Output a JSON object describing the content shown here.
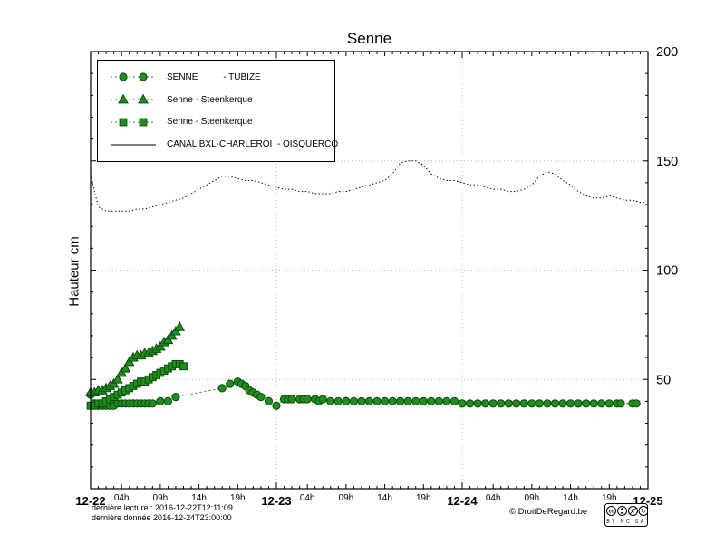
{
  "title": "Senne",
  "ylabel": "Hauteur cm",
  "footer": {
    "derniere_lecture": "dernière lecture : 2016-12-22T12:11:09",
    "derniere_donnee": "dernière donnée  2016-12-24T23:00:00",
    "copyright": "© DroitDeRegard.be",
    "license_cc": "cc",
    "license_labels": "BY NC SA"
  },
  "legend": [
    {
      "label": "SENNE          - TUBIZE",
      "marker": "circle",
      "line": "dotted",
      "color": "#1e8e1e",
      "edge": "#0a4a0a"
    },
    {
      "label": "Senne - Steenkerque",
      "marker": "triangle",
      "line": "dotted",
      "color": "#1e8e1e",
      "edge": "#0a4a0a"
    },
    {
      "label": "Senne - Steenkerque",
      "marker": "square",
      "line": "dotted",
      "color": "#1e8e1e",
      "edge": "#0a4a0a"
    },
    {
      "label": "CANAL BXL-CHARLEROI  - OISQUERCQ",
      "marker": "none",
      "line": "solid",
      "color": "#000000",
      "edge": "#000000"
    }
  ],
  "chart_data": {
    "type": "line",
    "title": "Senne",
    "xlabel": "",
    "ylabel": "Hauteur cm",
    "x_unit": "hours since 2016-12-22 00:00",
    "x_total_hours": 72,
    "x_ticks_days": [
      "12-22",
      "12-23",
      "12-24",
      "12-25"
    ],
    "x_ticks_hours": [
      "04h",
      "09h",
      "14h",
      "19h"
    ],
    "x_hour_offsets": [
      4,
      9,
      14,
      19
    ],
    "ylim": [
      0,
      200
    ],
    "y_ticks": [
      50,
      100,
      150,
      200
    ],
    "grid": true,
    "legend_position": "top-left",
    "series": [
      {
        "name": "CANAL BXL-CHARLEROI - OISQUERCQ",
        "marker": "none",
        "line": "fine-dotted",
        "color": "#000000",
        "edge": "#000000",
        "points": [
          [
            0,
            144
          ],
          [
            0.5,
            136
          ],
          [
            1,
            129
          ],
          [
            2,
            127
          ],
          [
            3,
            127
          ],
          [
            4,
            127
          ],
          [
            5,
            127
          ],
          [
            6,
            128
          ],
          [
            7,
            128
          ],
          [
            8,
            129
          ],
          [
            9,
            130
          ],
          [
            10,
            131
          ],
          [
            11,
            132
          ],
          [
            12,
            133
          ],
          [
            13,
            135
          ],
          [
            14,
            137
          ],
          [
            15,
            139
          ],
          [
            16,
            141
          ],
          [
            17,
            143
          ],
          [
            18,
            143
          ],
          [
            19,
            142
          ],
          [
            20,
            141
          ],
          [
            21,
            141
          ],
          [
            22,
            140
          ],
          [
            23,
            139
          ],
          [
            24,
            138
          ],
          [
            25,
            137
          ],
          [
            26,
            137
          ],
          [
            27,
            136
          ],
          [
            28,
            136
          ],
          [
            29,
            135
          ],
          [
            30,
            135
          ],
          [
            31,
            135
          ],
          [
            32,
            136
          ],
          [
            33,
            136
          ],
          [
            34,
            137
          ],
          [
            35,
            138
          ],
          [
            36,
            139
          ],
          [
            37,
            140
          ],
          [
            38,
            141
          ],
          [
            39,
            144
          ],
          [
            40,
            149
          ],
          [
            41,
            150
          ],
          [
            42,
            150
          ],
          [
            43,
            148
          ],
          [
            44,
            144
          ],
          [
            45,
            142
          ],
          [
            46,
            141
          ],
          [
            47,
            141
          ],
          [
            48,
            140
          ],
          [
            49,
            139
          ],
          [
            50,
            139
          ],
          [
            51,
            138
          ],
          [
            52,
            137
          ],
          [
            53,
            137
          ],
          [
            54,
            136
          ],
          [
            55,
            136
          ],
          [
            56,
            137
          ],
          [
            57,
            139
          ],
          [
            58,
            143
          ],
          [
            59,
            145
          ],
          [
            60,
            144
          ],
          [
            61,
            141
          ],
          [
            62,
            139
          ],
          [
            63,
            136
          ],
          [
            64,
            134
          ],
          [
            65,
            133
          ],
          [
            66,
            133
          ],
          [
            67,
            134
          ],
          [
            68,
            133
          ],
          [
            69,
            132
          ],
          [
            70,
            132
          ],
          [
            71,
            131
          ],
          [
            71.5,
            131
          ]
        ]
      },
      {
        "name": "SENNE - TUBIZE",
        "marker": "circle",
        "line": "dotted",
        "color": "#1e8e1e",
        "edge": "#0a4a0a",
        "points": [
          [
            0,
            43
          ],
          [
            0.5,
            39
          ],
          [
            1,
            38
          ],
          [
            1.5,
            38
          ],
          [
            2,
            38
          ],
          [
            2.5,
            38
          ],
          [
            3,
            38
          ],
          [
            3.5,
            39
          ],
          [
            4,
            39
          ],
          [
            4.5,
            39
          ],
          [
            5,
            39
          ],
          [
            5.5,
            39
          ],
          [
            6,
            39
          ],
          [
            6.5,
            39
          ],
          [
            7,
            39
          ],
          [
            7.5,
            39
          ],
          [
            8,
            39
          ],
          [
            9,
            40
          ],
          [
            10,
            40
          ],
          [
            11,
            42
          ],
          [
            17,
            46
          ],
          [
            18,
            48
          ],
          [
            19,
            49
          ],
          [
            19.5,
            48
          ],
          [
            20,
            47
          ],
          [
            20.5,
            45
          ],
          [
            21,
            44
          ],
          [
            21.5,
            43
          ],
          [
            22,
            42
          ],
          [
            23,
            40
          ],
          [
            24,
            38
          ],
          [
            25,
            41
          ],
          [
            25.5,
            41
          ],
          [
            26,
            41
          ],
          [
            27,
            41
          ],
          [
            27.5,
            41
          ],
          [
            28,
            41
          ],
          [
            29,
            41
          ],
          [
            29.5,
            40
          ],
          [
            30,
            41
          ],
          [
            31,
            40
          ],
          [
            32,
            40
          ],
          [
            33,
            40
          ],
          [
            34,
            40
          ],
          [
            35,
            40
          ],
          [
            36,
            40
          ],
          [
            37,
            40
          ],
          [
            38,
            40
          ],
          [
            39,
            40
          ],
          [
            40,
            40
          ],
          [
            41,
            40
          ],
          [
            42,
            40
          ],
          [
            43,
            40
          ],
          [
            44,
            40
          ],
          [
            45,
            40
          ],
          [
            46,
            40
          ],
          [
            47,
            40
          ],
          [
            48,
            39
          ],
          [
            49,
            39
          ],
          [
            50,
            39
          ],
          [
            51,
            39
          ],
          [
            52,
            39
          ],
          [
            53,
            39
          ],
          [
            54,
            39
          ],
          [
            55,
            39
          ],
          [
            56,
            39
          ],
          [
            57,
            39
          ],
          [
            58,
            39
          ],
          [
            59,
            39
          ],
          [
            60,
            39
          ],
          [
            61,
            39
          ],
          [
            62,
            39
          ],
          [
            63,
            39
          ],
          [
            64,
            39
          ],
          [
            65,
            39
          ],
          [
            66,
            39
          ],
          [
            67,
            39
          ],
          [
            68,
            39
          ],
          [
            68.5,
            39
          ],
          [
            70,
            39
          ],
          [
            70.5,
            39
          ]
        ]
      },
      {
        "name": "Senne - Steenkerque (triangles)",
        "marker": "triangle",
        "line": "dotted",
        "color": "#1e8e1e",
        "edge": "#0a4a0a",
        "points": [
          [
            0,
            44
          ],
          [
            0.5,
            44
          ],
          [
            1,
            45
          ],
          [
            1.5,
            45
          ],
          [
            2,
            46
          ],
          [
            2.5,
            47
          ],
          [
            3,
            48
          ],
          [
            3.5,
            50
          ],
          [
            4,
            53
          ],
          [
            4.5,
            55
          ],
          [
            5,
            58
          ],
          [
            5.5,
            60
          ],
          [
            6,
            61
          ],
          [
            6.5,
            61
          ],
          [
            7,
            62
          ],
          [
            7.5,
            62
          ],
          [
            8,
            63
          ],
          [
            8.5,
            64
          ],
          [
            9,
            65
          ],
          [
            9.5,
            67
          ],
          [
            10,
            68
          ],
          [
            10.5,
            70
          ],
          [
            11,
            72
          ],
          [
            11.5,
            74
          ]
        ]
      },
      {
        "name": "Senne - Steenkerque (squares)",
        "marker": "square",
        "line": "dotted",
        "color": "#1e8e1e",
        "edge": "#0a4a0a",
        "points": [
          [
            0,
            38
          ],
          [
            0.5,
            38
          ],
          [
            1,
            39
          ],
          [
            1.5,
            39
          ],
          [
            2,
            40
          ],
          [
            2.5,
            41
          ],
          [
            3,
            42
          ],
          [
            3.5,
            43
          ],
          [
            4,
            44
          ],
          [
            4.5,
            45
          ],
          [
            5,
            46
          ],
          [
            5.5,
            47
          ],
          [
            6,
            48
          ],
          [
            6.5,
            49
          ],
          [
            7,
            49
          ],
          [
            7.5,
            50
          ],
          [
            8,
            51
          ],
          [
            8.5,
            52
          ],
          [
            9,
            53
          ],
          [
            9.5,
            54
          ],
          [
            10,
            55
          ],
          [
            10.5,
            56
          ],
          [
            11,
            57
          ],
          [
            11.5,
            57
          ],
          [
            12,
            56
          ]
        ]
      }
    ]
  }
}
